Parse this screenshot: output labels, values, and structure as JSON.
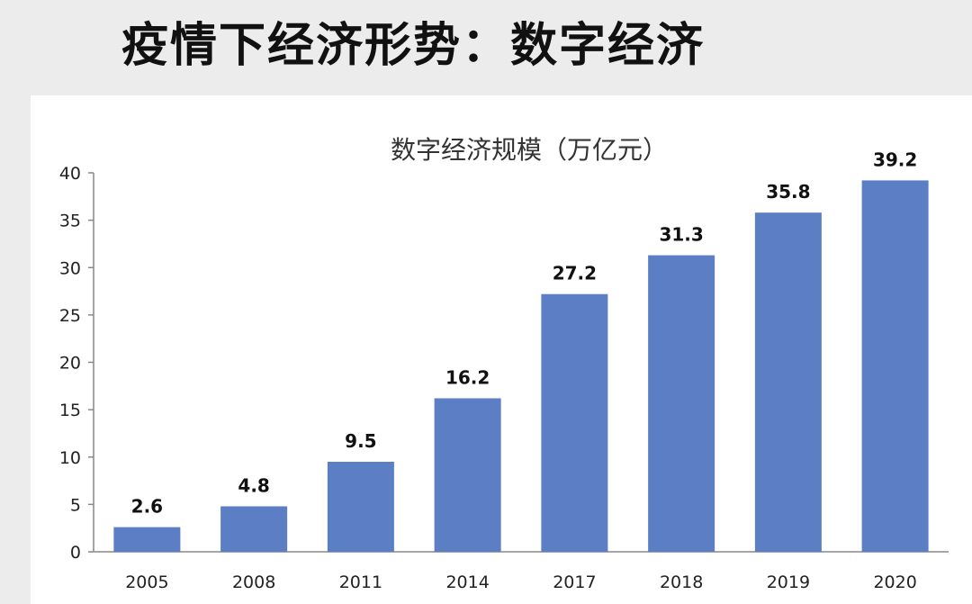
{
  "slide": {
    "title": "疫情下经济形势：数字经济"
  },
  "colors": {
    "bar": "#5b7ec4",
    "axis": "#888888"
  },
  "chart_data": {
    "type": "bar",
    "title": "数字经济规模（万亿元）",
    "categories": [
      "2005",
      "2008",
      "2011",
      "2014",
      "2017",
      "2018",
      "2019",
      "2020"
    ],
    "values": [
      2.6,
      4.8,
      9.5,
      16.2,
      27.2,
      31.3,
      35.8,
      39.2
    ],
    "data_labels": [
      "2.6",
      "4.8",
      "9.5",
      "16.2",
      "27.2",
      "31.3",
      "35.8",
      "39.2"
    ],
    "ylim": [
      0,
      40
    ],
    "yticks": [
      0,
      5,
      10,
      15,
      20,
      25,
      30,
      35,
      40
    ],
    "xlabel": "",
    "ylabel": "",
    "grid": false,
    "legend": "none"
  }
}
